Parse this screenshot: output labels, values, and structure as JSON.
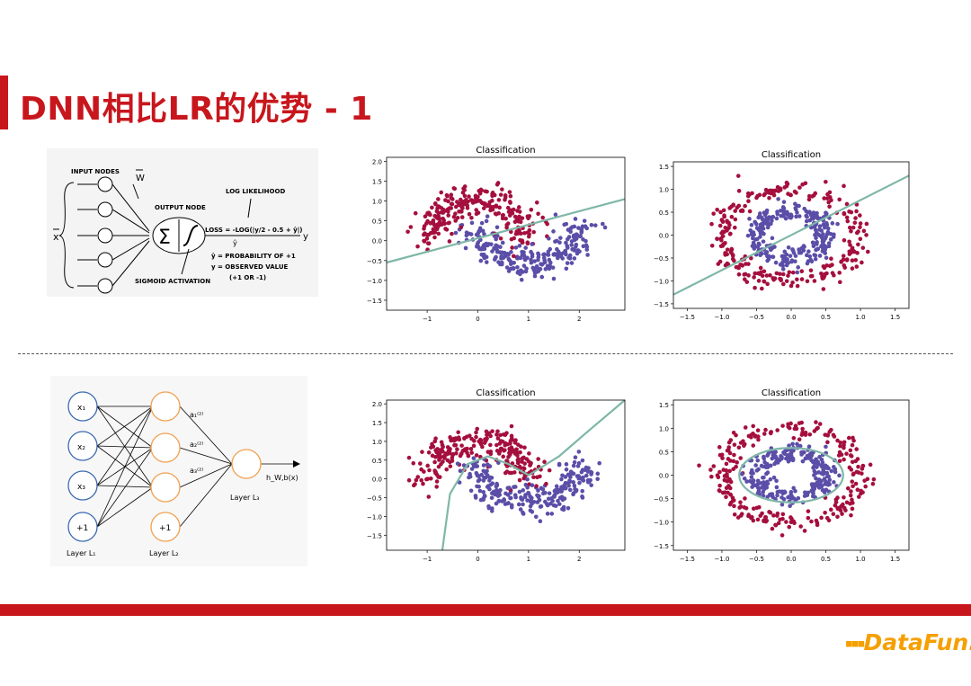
{
  "slide": {
    "title": "DNN相比LR的优势 - 1",
    "accent": "#c8161d",
    "logo_text": "DataFun."
  },
  "lr_diagram": {
    "input_nodes_label": "INPUT NODES",
    "weight_label": "W",
    "input_symbol": "x",
    "output_node_label": "OUTPUT NODE",
    "log_likelihood_label": "LOG LIKELIHOOD",
    "loss_formula": "LOSS = -LOG(|y/2 - 0.5 + ŷ|)",
    "yhat_symbol": "ŷ",
    "output_symbol": "y",
    "prob_line": "ŷ = PROBABILITY OF +1",
    "obs_line": "y = OBSERVED VALUE",
    "range_line": "(+1 OR -1)",
    "sigmoid_label": "SIGMOID ACTIVATION"
  },
  "nn_diagram": {
    "inputs": [
      "x₁",
      "x₂",
      "x₃",
      "+1"
    ],
    "hidden_bias": "+1",
    "hidden_labels": [
      "a₁⁽²⁾",
      "a₂⁽²⁾",
      "a₃⁽²⁾"
    ],
    "output_label": "h_W,b(x)",
    "layer1": "Layer L₁",
    "layer2": "Layer L₂",
    "layer3": "Layer L₃"
  },
  "chart_data": [
    {
      "type": "scatter",
      "title": "Classification",
      "dataset": "moons",
      "boundary": "linear",
      "xlim": [
        -1.8,
        2.9
      ],
      "ylim": [
        -1.75,
        2.1
      ],
      "xticks": [
        -1,
        0,
        1,
        2
      ],
      "yticks": [
        2.0,
        1.5,
        1.0,
        0.5,
        0.0,
        -0.5,
        -1.0,
        -1.5
      ],
      "series": [
        {
          "color": "#a50f3d",
          "description": "class 0 upper moon"
        },
        {
          "color": "#5b4ea8",
          "description": "class 1 lower moon"
        }
      ],
      "boundary_line": [
        [
          -1.8,
          -0.55
        ],
        [
          2.9,
          1.05
        ]
      ],
      "boundary_color": "#7fb7a8"
    },
    {
      "type": "scatter",
      "title": "Classification",
      "dataset": "circles",
      "boundary": "linear",
      "xlim": [
        -1.7,
        1.7
      ],
      "ylim": [
        -1.6,
        1.6
      ],
      "xticks": [
        -1.5,
        -1.0,
        -0.5,
        0.0,
        0.5,
        1.0,
        1.5
      ],
      "yticks": [
        1.5,
        1.0,
        0.5,
        0.0,
        -0.5,
        -1.0,
        -1.5
      ],
      "series": [
        {
          "color": "#a50f3d",
          "description": "outer ring"
        },
        {
          "color": "#5b4ea8",
          "description": "inner ring"
        }
      ],
      "boundary_line": [
        [
          -1.7,
          -1.3
        ],
        [
          1.7,
          1.3
        ]
      ],
      "boundary_color": "#7fb7a8"
    },
    {
      "type": "scatter",
      "title": "Classification",
      "dataset": "moons",
      "boundary": "nonlinear",
      "xlim": [
        -1.8,
        2.9
      ],
      "ylim": [
        -1.9,
        2.1
      ],
      "xticks": [
        -1,
        0,
        1,
        2
      ],
      "yticks": [
        2.0,
        1.5,
        1.0,
        0.5,
        0.0,
        -0.5,
        -1.0,
        -1.5
      ],
      "series": [
        {
          "color": "#a50f3d",
          "description": "class 0 upper moon"
        },
        {
          "color": "#5b4ea8",
          "description": "class 1 lower moon"
        }
      ],
      "boundary_line": [
        [
          -0.7,
          -1.9
        ],
        [
          -0.55,
          -0.4
        ],
        [
          -0.2,
          0.4
        ],
        [
          0.2,
          0.6
        ],
        [
          0.6,
          0.4
        ],
        [
          1.0,
          0.1
        ],
        [
          1.6,
          0.6
        ],
        [
          2.2,
          1.3
        ],
        [
          2.9,
          2.1
        ]
      ],
      "boundary_color": "#7fb7a8"
    },
    {
      "type": "scatter",
      "title": "Classification",
      "dataset": "circles",
      "boundary": "nonlinear",
      "xlim": [
        -1.7,
        1.7
      ],
      "ylim": [
        -1.6,
        1.6
      ],
      "xticks": [
        -1.5,
        -1.0,
        -0.5,
        0.0,
        0.5,
        1.0,
        1.5
      ],
      "yticks": [
        1.5,
        1.0,
        0.5,
        0.0,
        -0.5,
        -1.0,
        -1.5
      ],
      "series": [
        {
          "color": "#a50f3d",
          "description": "outer ring"
        },
        {
          "color": "#5b4ea8",
          "description": "inner ring"
        }
      ],
      "boundary_ellipse": {
        "cx": 0.0,
        "cy": 0.0,
        "rx": 0.75,
        "ry": 0.58
      },
      "boundary_color": "#7fb7a8"
    }
  ]
}
